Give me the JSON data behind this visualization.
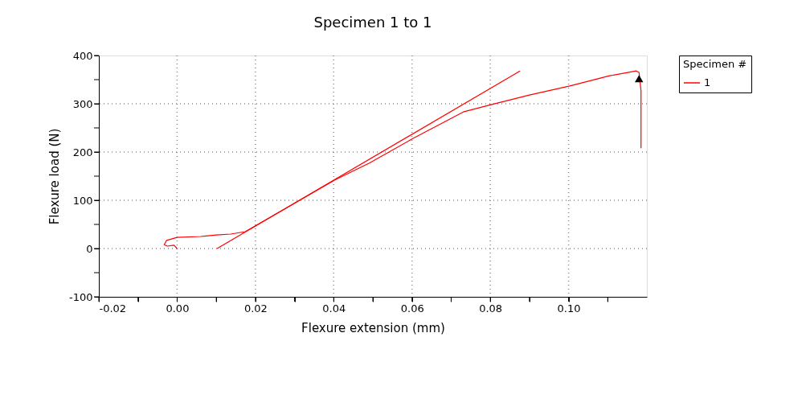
{
  "chart_data": {
    "type": "line",
    "title": "Specimen 1 to 1",
    "xlabel": "Flexure extension (mm)",
    "ylabel": "Flexure load (N)",
    "legend_title": "Specimen #",
    "xlim": [
      -0.02,
      0.12
    ],
    "ylim": [
      -100,
      400
    ],
    "xticks": [
      {
        "value": -0.02,
        "label": "-0.02"
      },
      {
        "value": -0.01,
        "label": null
      },
      {
        "value": 0,
        "label": "0.00"
      },
      {
        "value": 0.01,
        "label": null
      },
      {
        "value": 0.02,
        "label": "0.02"
      },
      {
        "value": 0.03,
        "label": null
      },
      {
        "value": 0.04,
        "label": "0.04"
      },
      {
        "value": 0.05,
        "label": null
      },
      {
        "value": 0.06,
        "label": "0.06"
      },
      {
        "value": 0.07,
        "label": null
      },
      {
        "value": 0.08,
        "label": "0.08"
      },
      {
        "value": 0.09,
        "label": null
      },
      {
        "value": 0.1,
        "label": "0.10"
      },
      {
        "value": 0.11,
        "label": null
      }
    ],
    "yticks": [
      -100,
      {
        "value": -50,
        "label": null
      },
      0,
      {
        "value": 50,
        "label": null
      },
      100,
      {
        "value": 150,
        "label": null
      },
      200,
      {
        "value": 250,
        "label": null
      },
      300,
      {
        "value": 350,
        "label": null
      },
      400
    ],
    "grid": true,
    "legend": "right",
    "line_style": "solid",
    "series": [
      {
        "name": "1",
        "type": "line",
        "color": "#ff0000",
        "x": [
          0.0,
          -0.0008,
          -0.0025,
          -0.0033,
          -0.0027,
          0.0,
          0.006,
          0.01,
          0.0137,
          0.0174,
          0.0403,
          0.0491,
          0.06,
          0.0731,
          0.0802,
          0.09,
          0.1003,
          0.1105,
          0.1173,
          0.118,
          0.1185,
          0.1185
        ],
        "values": [
          0,
          7,
          5,
          8,
          17,
          23,
          25,
          28,
          30,
          35,
          142,
          177,
          227,
          283,
          298,
          318,
          337,
          358,
          368,
          365,
          327,
          208
        ]
      },
      {
        "type": "line",
        "color": "#ff0000",
        "x": [
          0.0102,
          0.0876
        ],
        "values": [
          0,
          368
        ]
      },
      {
        "type": "scatter",
        "marker": "triangle",
        "color": "#000000",
        "x": [
          0.118
        ],
        "values": [
          352
        ]
      }
    ]
  }
}
